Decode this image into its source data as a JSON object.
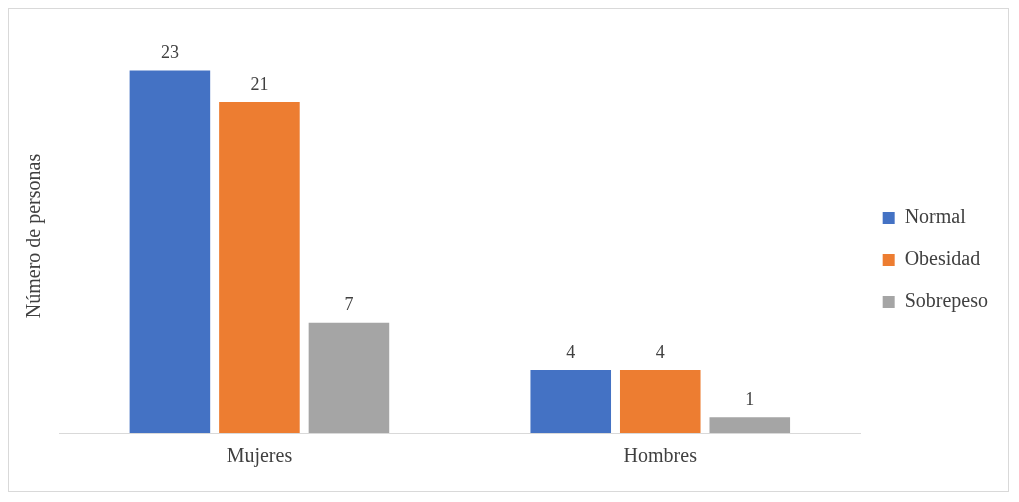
{
  "chart_data": {
    "type": "bar",
    "ylabel": "Número de personas",
    "categories": [
      "Mujeres",
      "Hombres"
    ],
    "series": [
      {
        "name": "Normal",
        "color": "#4472c4",
        "values": [
          23,
          4
        ]
      },
      {
        "name": "Obesidad",
        "color": "#ed7d31",
        "values": [
          21,
          4
        ]
      },
      {
        "name": "Sobrepeso",
        "color": "#a5a5a5",
        "values": [
          7,
          1
        ]
      }
    ],
    "data_labels": true,
    "grid": false,
    "legend": "right"
  }
}
